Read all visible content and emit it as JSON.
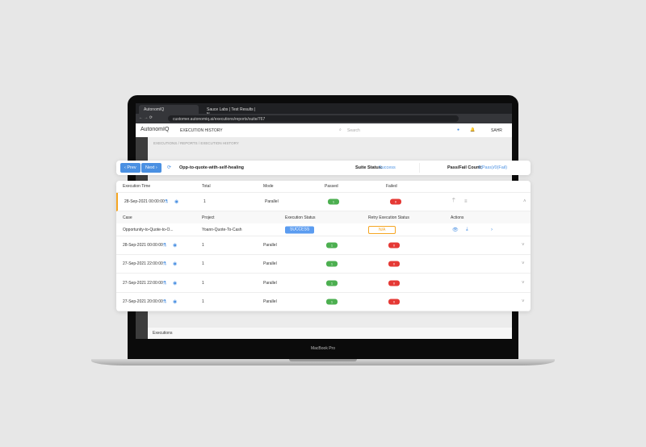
{
  "browser": {
    "tabs": [
      "AutonomIQ",
      "Sauce Labs | Test Results | N..."
    ],
    "url": "customer.autonomiq.ai/executions/reports/suite/767"
  },
  "app": {
    "logo": "AutonomIQ",
    "title": "EXECUTION HISTORY",
    "search_placeholder": "Search",
    "user": "SAHR",
    "breadcrumb": "EXECUTIONS  /  REPORTS  /  EXECUTION HISTORY",
    "footer": "Executions"
  },
  "toolbar": {
    "prev": "‹ Prev",
    "next": "Next ›",
    "suite_name": "Opp-to-quote-with-self-healing",
    "suite_status_label": "Suite Status:",
    "suite_status": "Success",
    "pass_fail_label": "Pass/Fail Count:",
    "pass_fail": "1(Pass)/0(Fail)"
  },
  "table": {
    "headers": [
      "Execution Time",
      "Total",
      "Mode",
      "Passed",
      "Failed"
    ],
    "rows": [
      {
        "time": "28-Sep-2021 00:00:00",
        "total": "1",
        "mode": "Parallel",
        "passed": "1",
        "failed": "0",
        "expanded": true
      },
      {
        "time": "28-Sep-2021 00:00:00",
        "total": "1",
        "mode": "Parallel",
        "passed": "1",
        "failed": "0"
      },
      {
        "time": "27-Sep-2021 22:00:00",
        "total": "1",
        "mode": "Parallel",
        "passed": "1",
        "failed": "0"
      },
      {
        "time": "27-Sep-2021 22:00:00",
        "total": "1",
        "mode": "Parallel",
        "passed": "1",
        "failed": "0"
      },
      {
        "time": "27-Sep-2021 20:00:00",
        "total": "1",
        "mode": "Parallel",
        "passed": "1",
        "failed": "0"
      }
    ],
    "sub_headers": [
      "Case",
      "Project",
      "Execution Status",
      "Retry Execution Status",
      "Actions"
    ],
    "sub_row": {
      "case": "Opportunity-to-Quote-to-O...",
      "project": "Yoann-Quote-To-Cash",
      "status": "SUCCESS",
      "retry": "N/A"
    }
  },
  "device_label": "MacBook Pro",
  "colors": {
    "accent": "#4a90e2",
    "passed": "#4caf50",
    "failed": "#e53935",
    "active_row": "#f5a623",
    "na": "#f5a623"
  }
}
